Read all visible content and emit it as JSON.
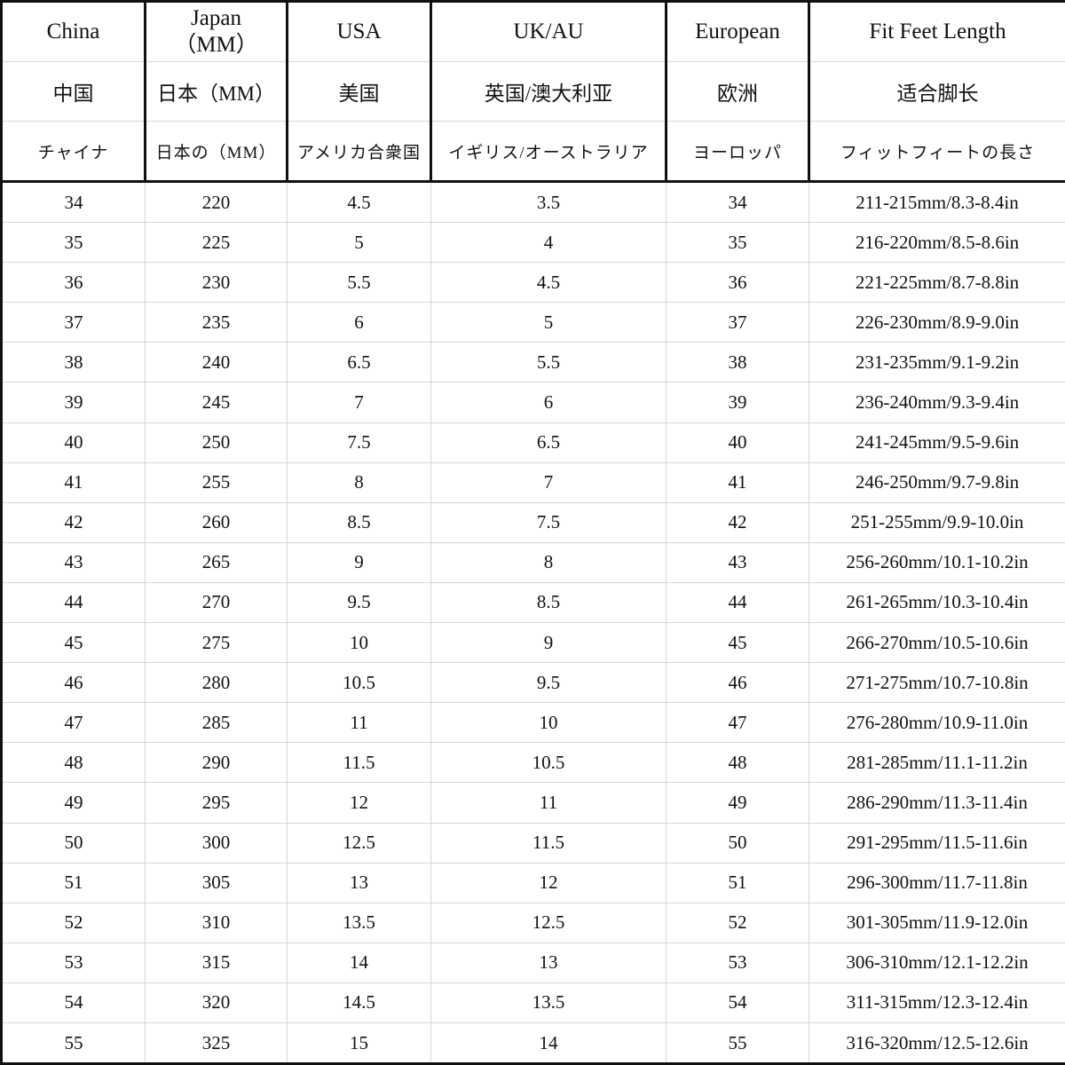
{
  "headers": [
    {
      "en": "China",
      "zh": "中国",
      "ja": "チャイナ"
    },
    {
      "en": "Japan\n（MM）",
      "zh": "日本（MM）",
      "ja": "日本の（MM）"
    },
    {
      "en": "USA",
      "zh": "美国",
      "ja": "アメリカ合衆国"
    },
    {
      "en": "UK/AU",
      "zh": "英国/澳大利亚",
      "ja": "イギリス/オーストラリア"
    },
    {
      "en": "European",
      "zh": "欧洲",
      "ja": "ヨーロッパ"
    },
    {
      "en": "Fit Feet Length",
      "zh": "适合脚长",
      "ja": "フィットフィートの長さ"
    }
  ],
  "rows": [
    [
      "34",
      "220",
      "4.5",
      "3.5",
      "34",
      "211-215mm/8.3-8.4in"
    ],
    [
      "35",
      "225",
      "5",
      "4",
      "35",
      "216-220mm/8.5-8.6in"
    ],
    [
      "36",
      "230",
      "5.5",
      "4.5",
      "36",
      "221-225mm/8.7-8.8in"
    ],
    [
      "37",
      "235",
      "6",
      "5",
      "37",
      "226-230mm/8.9-9.0in"
    ],
    [
      "38",
      "240",
      "6.5",
      "5.5",
      "38",
      "231-235mm/9.1-9.2in"
    ],
    [
      "39",
      "245",
      "7",
      "6",
      "39",
      "236-240mm/9.3-9.4in"
    ],
    [
      "40",
      "250",
      "7.5",
      "6.5",
      "40",
      "241-245mm/9.5-9.6in"
    ],
    [
      "41",
      "255",
      "8",
      "7",
      "41",
      "246-250mm/9.7-9.8in"
    ],
    [
      "42",
      "260",
      "8.5",
      "7.5",
      "42",
      "251-255mm/9.9-10.0in"
    ],
    [
      "43",
      "265",
      "9",
      "8",
      "43",
      "256-260mm/10.1-10.2in"
    ],
    [
      "44",
      "270",
      "9.5",
      "8.5",
      "44",
      "261-265mm/10.3-10.4in"
    ],
    [
      "45",
      "275",
      "10",
      "9",
      "45",
      "266-270mm/10.5-10.6in"
    ],
    [
      "46",
      "280",
      "10.5",
      "9.5",
      "46",
      "271-275mm/10.7-10.8in"
    ],
    [
      "47",
      "285",
      "11",
      "10",
      "47",
      "276-280mm/10.9-11.0in"
    ],
    [
      "48",
      "290",
      "11.5",
      "10.5",
      "48",
      "281-285mm/11.1-11.2in"
    ],
    [
      "49",
      "295",
      "12",
      "11",
      "49",
      "286-290mm/11.3-11.4in"
    ],
    [
      "50",
      "300",
      "12.5",
      "11.5",
      "50",
      "291-295mm/11.5-11.6in"
    ],
    [
      "51",
      "305",
      "13",
      "12",
      "51",
      "296-300mm/11.7-11.8in"
    ],
    [
      "52",
      "310",
      "13.5",
      "12.5",
      "52",
      "301-305mm/11.9-12.0in"
    ],
    [
      "53",
      "315",
      "14",
      "13",
      "53",
      "306-310mm/12.1-12.2in"
    ],
    [
      "54",
      "320",
      "14.5",
      "13.5",
      "54",
      "311-315mm/12.3-12.4in"
    ],
    [
      "55",
      "325",
      "15",
      "14",
      "55",
      "316-320mm/12.5-12.6in"
    ]
  ]
}
